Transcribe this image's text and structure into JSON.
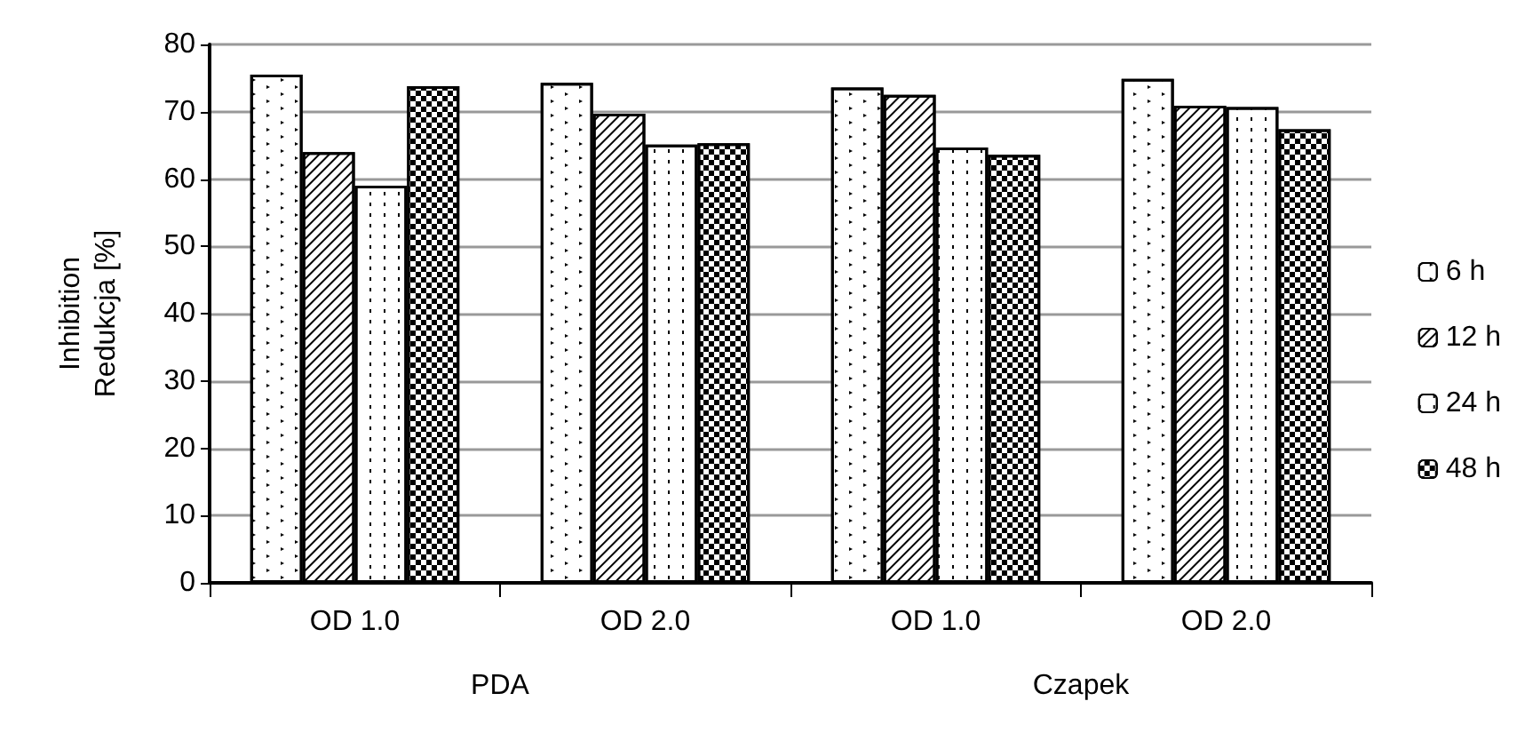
{
  "chart_data": {
    "type": "bar",
    "ylabel": "Inhibition\nRedukcja [%]",
    "categories": [
      "OD 1.0",
      "OD 2.0",
      "OD 1.0",
      "OD 2.0"
    ],
    "series": [
      {
        "name": "6 h",
        "color": "#ffffff",
        "values": [
          75.5,
          74.3,
          73.6,
          74.9
        ]
      },
      {
        "name": "12 h",
        "color": "#ffffff",
        "values": [
          64,
          69.7,
          72.5,
          70.9
        ]
      },
      {
        "name": "24 h",
        "color": "#ffffff",
        "values": [
          59,
          65.1,
          64.7,
          70.7
        ]
      },
      {
        "name": "48 h",
        "color": "#ffffff",
        "values": [
          73.8,
          65.3,
          63.6,
          67.4
        ]
      }
    ],
    "annotations": [
      "PDA",
      "Czapek"
    ],
    "ylim": [
      0,
      80
    ],
    "yticks": [
      0,
      10,
      20,
      30,
      40,
      50,
      60,
      70,
      80
    ],
    "grid": "y",
    "legend": "right"
  }
}
